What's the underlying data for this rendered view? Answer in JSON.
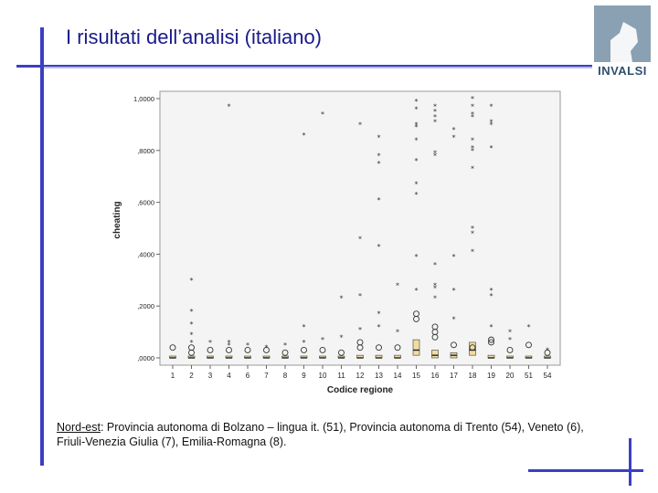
{
  "slide": {
    "title": "I risultati dell’analisi (italiano)",
    "logo_text": "INVALSI",
    "caption_lead": "Nord-est",
    "caption_rest": ": Provincia autonoma di Bolzano – lingua it. (51), Provincia autonoma di Trento (54), Veneto (6), Friuli-Venezia Giulia (7), Emilia-Romagna (8).",
    "accent_color": "#3a3fc4",
    "title_color": "#1a1a8a"
  },
  "chart_data": {
    "type": "boxplot",
    "xlabel": "Codice regione",
    "ylabel": "cheating",
    "ylim": [
      0,
      1.0
    ],
    "y_ticks": [
      ",0000",
      ",2000",
      ",4000",
      ",6000",
      ",8000",
      "1,0000"
    ],
    "y_tick_values": [
      0,
      0.2,
      0.4,
      0.6,
      0.8,
      1.0
    ],
    "categories": [
      "1",
      "2",
      "3",
      "4",
      "6",
      "7",
      "8",
      "9",
      "10",
      "11",
      "12",
      "13",
      "14",
      "15",
      "16",
      "17",
      "18",
      "19",
      "20",
      "51",
      "54"
    ],
    "box_color": "#f2dca0",
    "groups": [
      {
        "code": "1",
        "q1": 0,
        "median": 0,
        "q3": 0.005,
        "circles": [
          0.04
        ],
        "stars": []
      },
      {
        "code": "2",
        "q1": 0,
        "median": 0,
        "q3": 0.005,
        "circles": [
          0.04,
          0.02
        ],
        "stars": [
          0.3,
          0.18,
          0.13,
          0.09,
          0.06
        ]
      },
      {
        "code": "3",
        "q1": 0,
        "median": 0,
        "q3": 0.005,
        "circles": [
          0.03
        ],
        "stars": [
          0.06
        ]
      },
      {
        "code": "4",
        "q1": 0,
        "median": 0,
        "q3": 0.005,
        "circles": [
          0.03
        ],
        "stars": [
          0.97,
          0.06,
          0.05
        ]
      },
      {
        "code": "6",
        "q1": 0,
        "median": 0,
        "q3": 0.005,
        "circles": [
          0.03
        ],
        "stars": [
          0.05
        ]
      },
      {
        "code": "7",
        "q1": 0,
        "median": 0,
        "q3": 0.005,
        "circles": [
          0.03
        ],
        "stars": [
          0.04
        ]
      },
      {
        "code": "8",
        "q1": 0,
        "median": 0,
        "q3": 0.005,
        "circles": [
          0.02
        ],
        "stars": [
          0.05
        ]
      },
      {
        "code": "9",
        "q1": 0,
        "median": 0,
        "q3": 0.005,
        "circles": [
          0.03
        ],
        "stars": [
          0.86,
          0.12,
          0.06
        ]
      },
      {
        "code": "10",
        "q1": 0,
        "median": 0,
        "q3": 0.005,
        "circles": [
          0.03
        ],
        "stars": [
          0.94,
          0.07
        ]
      },
      {
        "code": "11",
        "q1": 0,
        "median": 0,
        "q3": 0.005,
        "circles": [
          0.02
        ],
        "stars": [
          0.23,
          0.08
        ]
      },
      {
        "code": "12",
        "q1": 0,
        "median": 0,
        "q3": 0.01,
        "circles": [
          0.06,
          0.04
        ],
        "stars": [
          0.9,
          0.46,
          0.24,
          0.11
        ]
      },
      {
        "code": "13",
        "q1": 0,
        "median": 0,
        "q3": 0.01,
        "circles": [
          0.04
        ],
        "stars": [
          0.85,
          0.78,
          0.75,
          0.61,
          0.43,
          0.17,
          0.12
        ]
      },
      {
        "code": "14",
        "q1": 0,
        "median": 0,
        "q3": 0.01,
        "circles": [
          0.04
        ],
        "stars": [
          0.28,
          0.1
        ]
      },
      {
        "code": "15",
        "q1": 0.01,
        "median": 0.03,
        "q3": 0.07,
        "circles": [
          0.17,
          0.15
        ],
        "stars": [
          0.99,
          0.96,
          0.9,
          0.89,
          0.84,
          0.76,
          0.67,
          0.63,
          0.39,
          0.26
        ]
      },
      {
        "code": "16",
        "q1": 0,
        "median": 0.01,
        "q3": 0.03,
        "circles": [
          0.12,
          0.1,
          0.08
        ],
        "stars": [
          0.97,
          0.95,
          0.93,
          0.91,
          0.79,
          0.78,
          0.36,
          0.28,
          0.27,
          0.23
        ]
      },
      {
        "code": "17",
        "q1": 0,
        "median": 0.01,
        "q3": 0.02,
        "circles": [
          0.05
        ],
        "stars": [
          0.88,
          0.85,
          0.39,
          0.26,
          0.15
        ]
      },
      {
        "code": "18",
        "q1": 0.01,
        "median": 0.03,
        "q3": 0.06,
        "circles": [
          0.04
        ],
        "stars": [
          1.0,
          0.97,
          0.94,
          0.93,
          0.84,
          0.81,
          0.8,
          0.73,
          0.5,
          0.48,
          0.41
        ]
      },
      {
        "code": "19",
        "q1": 0,
        "median": 0,
        "q3": 0.01,
        "circles": [
          0.07,
          0.06
        ],
        "stars": [
          0.97,
          0.91,
          0.9,
          0.81,
          0.26,
          0.24,
          0.12
        ]
      },
      {
        "code": "20",
        "q1": 0,
        "median": 0,
        "q3": 0.005,
        "circles": [
          0.03
        ],
        "stars": [
          0.1,
          0.07
        ]
      },
      {
        "code": "51",
        "q1": 0,
        "median": 0,
        "q3": 0.005,
        "circles": [
          0.05
        ],
        "stars": [
          0.12
        ]
      },
      {
        "code": "54",
        "q1": 0,
        "median": 0,
        "q3": 0.005,
        "circles": [
          0.02
        ],
        "stars": [
          0.03
        ]
      }
    ]
  }
}
